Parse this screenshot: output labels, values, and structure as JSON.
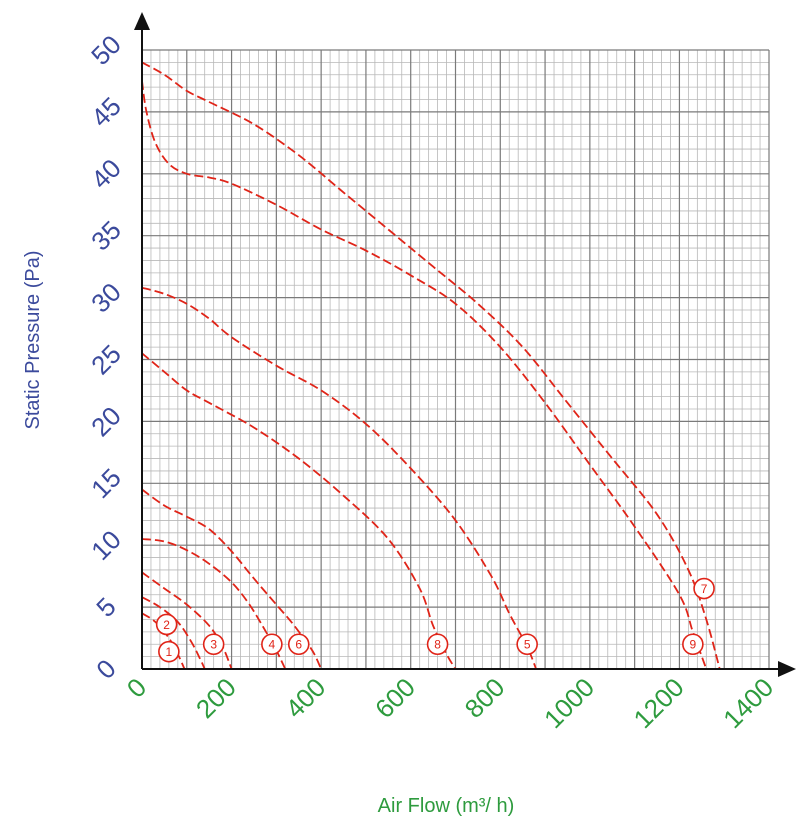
{
  "chart_data": {
    "type": "line",
    "xlabel": "Air Flow (m³/ h)",
    "ylabel": "Static Pressure (Pa)",
    "xlim": [
      0,
      1400
    ],
    "ylim": [
      0,
      50
    ],
    "x_ticks": [
      "0",
      "200",
      "400",
      "600",
      "800",
      "1000",
      "1200",
      "1400"
    ],
    "y_ticks": [
      "0",
      "5",
      "10",
      "15",
      "20",
      "25",
      "30",
      "35",
      "40",
      "45",
      "50"
    ],
    "grid": true,
    "line_color": "#e02418",
    "series": [
      {
        "label": "1",
        "label_at": [
          60,
          1.4
        ],
        "points": [
          [
            0,
            4.5
          ],
          [
            30,
            3.8
          ],
          [
            60,
            2.5
          ],
          [
            80,
            1.2
          ],
          [
            95,
            0
          ]
        ]
      },
      {
        "label": "2",
        "label_at": [
          55,
          3.6
        ],
        "points": [
          [
            0,
            5.8
          ],
          [
            40,
            5
          ],
          [
            80,
            3.8
          ],
          [
            110,
            2.2
          ],
          [
            130,
            0.8
          ],
          [
            140,
            0
          ]
        ]
      },
      {
        "label": "3",
        "label_at": [
          160,
          2
        ],
        "points": [
          [
            0,
            7.8
          ],
          [
            50,
            6.5
          ],
          [
            100,
            5.2
          ],
          [
            150,
            3.5
          ],
          [
            180,
            1.8
          ],
          [
            200,
            0
          ]
        ]
      },
      {
        "label": "4",
        "label_at": [
          290,
          2
        ],
        "points": [
          [
            0,
            10.5
          ],
          [
            50,
            10.3
          ],
          [
            100,
            9.6
          ],
          [
            150,
            8.5
          ],
          [
            200,
            7
          ],
          [
            240,
            5.2
          ],
          [
            280,
            2.8
          ],
          [
            300,
            1.5
          ],
          [
            320,
            0
          ]
        ]
      },
      {
        "label": "6",
        "label_at": [
          350,
          2
        ],
        "points": [
          [
            0,
            14.5
          ],
          [
            50,
            13.2
          ],
          [
            100,
            12.3
          ],
          [
            150,
            11.3
          ],
          [
            200,
            9.5
          ],
          [
            250,
            7.3
          ],
          [
            300,
            5.2
          ],
          [
            340,
            3.5
          ],
          [
            380,
            1.5
          ],
          [
            400,
            0
          ]
        ]
      },
      {
        "label": "8",
        "label_at": [
          660,
          2
        ],
        "points": [
          [
            0,
            25.5
          ],
          [
            50,
            24
          ],
          [
            100,
            22.5
          ],
          [
            150,
            21.5
          ],
          [
            250,
            19.5
          ],
          [
            350,
            17
          ],
          [
            450,
            14
          ],
          [
            550,
            10.5
          ],
          [
            620,
            6.5
          ],
          [
            650,
            3.5
          ],
          [
            680,
            1.2
          ],
          [
            700,
            0
          ]
        ]
      },
      {
        "label": "5",
        "label_at": [
          860,
          2
        ],
        "points": [
          [
            0,
            30.8
          ],
          [
            50,
            30.3
          ],
          [
            100,
            29.5
          ],
          [
            150,
            28.3
          ],
          [
            200,
            26.8
          ],
          [
            300,
            24.5
          ],
          [
            400,
            22.5
          ],
          [
            500,
            19.8
          ],
          [
            600,
            16.2
          ],
          [
            700,
            12
          ],
          [
            780,
            7.5
          ],
          [
            820,
            4.5
          ],
          [
            860,
            1.8
          ],
          [
            880,
            0
          ]
        ]
      },
      {
        "label": "9",
        "label_at": [
          1230,
          2
        ],
        "points": [
          [
            0,
            47.5
          ],
          [
            10,
            45
          ],
          [
            30,
            42.5
          ],
          [
            60,
            40.8
          ],
          [
            100,
            40
          ],
          [
            150,
            39.7
          ],
          [
            200,
            39.2
          ],
          [
            300,
            37.5
          ],
          [
            400,
            35.5
          ],
          [
            500,
            33.8
          ],
          [
            600,
            31.8
          ],
          [
            700,
            29.5
          ],
          [
            800,
            26
          ],
          [
            900,
            21.5
          ],
          [
            1000,
            16.5
          ],
          [
            1100,
            11.5
          ],
          [
            1200,
            6
          ],
          [
            1230,
            3
          ],
          [
            1260,
            0
          ]
        ]
      },
      {
        "label": "7",
        "label_at": [
          1255,
          6.5
        ],
        "points": [
          [
            0,
            49
          ],
          [
            50,
            48
          ],
          [
            100,
            46.7
          ],
          [
            150,
            45.8
          ],
          [
            250,
            44
          ],
          [
            350,
            41.5
          ],
          [
            450,
            38.5
          ],
          [
            550,
            35.5
          ],
          [
            650,
            32.5
          ],
          [
            750,
            29.5
          ],
          [
            850,
            26
          ],
          [
            950,
            21.5
          ],
          [
            1050,
            17
          ],
          [
            1150,
            12.5
          ],
          [
            1220,
            8
          ],
          [
            1260,
            4
          ],
          [
            1290,
            0
          ]
        ]
      }
    ]
  }
}
